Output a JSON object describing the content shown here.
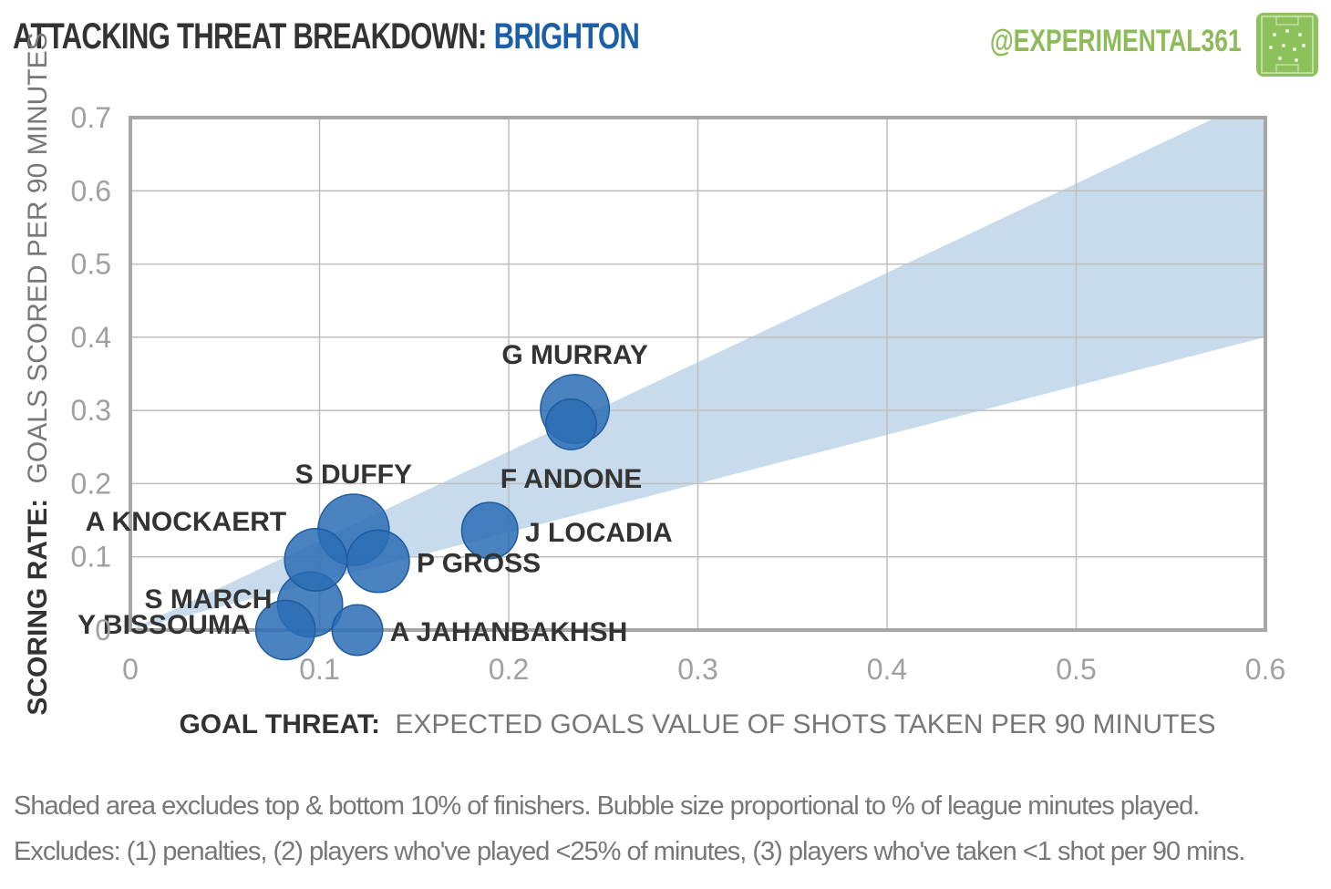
{
  "header": {
    "title_prefix": "ATTACKING THREAT BREAKDOWN:",
    "team": "BRIGHTON",
    "handle": "@EXPERIMENTAL361",
    "logo_icon": "pitch-icon"
  },
  "footnotes": [
    "Shaded area excludes top & bottom 10% of finishers. Bubble size proportional to % of league minutes played.",
    "Excludes: (1) penalties, (2) players who've played <25% of minutes, (3) players who've taken <1 shot per 90 mins."
  ],
  "colors": {
    "bubble_fill": "#2a6db5",
    "bubble_stroke": "#1e5aa0",
    "band": "#c7dbec",
    "title_accent": "#1b5fa8",
    "handle": "#8dbb5a",
    "grid": "#bfbfbf",
    "plot_border": "#a6a6a6"
  },
  "chart_data": {
    "type": "scatter",
    "title": "ATTACKING THREAT BREAKDOWN: BRIGHTON",
    "xlabel_bold": "GOAL THREAT:",
    "xlabel_rest": "EXPECTED GOALS VALUE OF SHOTS TAKEN PER 90 MINUTES",
    "ylabel_bold": "SCORING RATE:",
    "ylabel_rest": "GOALS SCORED PER 90 MINUTES",
    "xlim": [
      0,
      0.6
    ],
    "ylim": [
      0,
      0.7
    ],
    "xticks": [
      "0",
      "0.1",
      "0.2",
      "0.3",
      "0.4",
      "0.5",
      "0.6"
    ],
    "yticks": [
      "0",
      "0.1",
      "0.2",
      "0.3",
      "0.4",
      "0.5",
      "0.6",
      "0.7"
    ],
    "xtick_values": [
      0,
      0.1,
      0.2,
      0.3,
      0.4,
      0.5,
      0.6
    ],
    "ytick_values": [
      0,
      0.1,
      0.2,
      0.3,
      0.4,
      0.5,
      0.6,
      0.7
    ],
    "grid": true,
    "shaded_band": {
      "lower_slope": 0.667,
      "upper_slope": 1.22
    },
    "points": [
      {
        "name": "G MURRAY",
        "x": 0.235,
        "y": 0.302,
        "minutes_share": 0.9,
        "label_pos": "above"
      },
      {
        "name": "F ANDONE",
        "x": 0.233,
        "y": 0.281,
        "minutes_share": 0.3,
        "label_pos": "below"
      },
      {
        "name": "S DUFFY",
        "x": 0.118,
        "y": 0.137,
        "minutes_share": 1.0,
        "label_pos": "above"
      },
      {
        "name": "J LOCADIA",
        "x": 0.19,
        "y": 0.136,
        "minutes_share": 0.45,
        "label_pos": "right"
      },
      {
        "name": "A KNOCKAERT",
        "x": 0.098,
        "y": 0.096,
        "minutes_share": 0.65,
        "label_pos": "upper-left"
      },
      {
        "name": "P GROSS",
        "x": 0.131,
        "y": 0.094,
        "minutes_share": 0.65,
        "label_pos": "right"
      },
      {
        "name": "S MARCH",
        "x": 0.095,
        "y": 0.035,
        "minutes_share": 0.75,
        "label_pos": "left"
      },
      {
        "name": "Y BISSOUMA",
        "x": 0.082,
        "y": 0.0,
        "minutes_share": 0.55,
        "label_pos": "left"
      },
      {
        "name": "A JAHANBAKHSH",
        "x": 0.12,
        "y": 0.0,
        "minutes_share": 0.3,
        "label_pos": "right"
      }
    ]
  }
}
